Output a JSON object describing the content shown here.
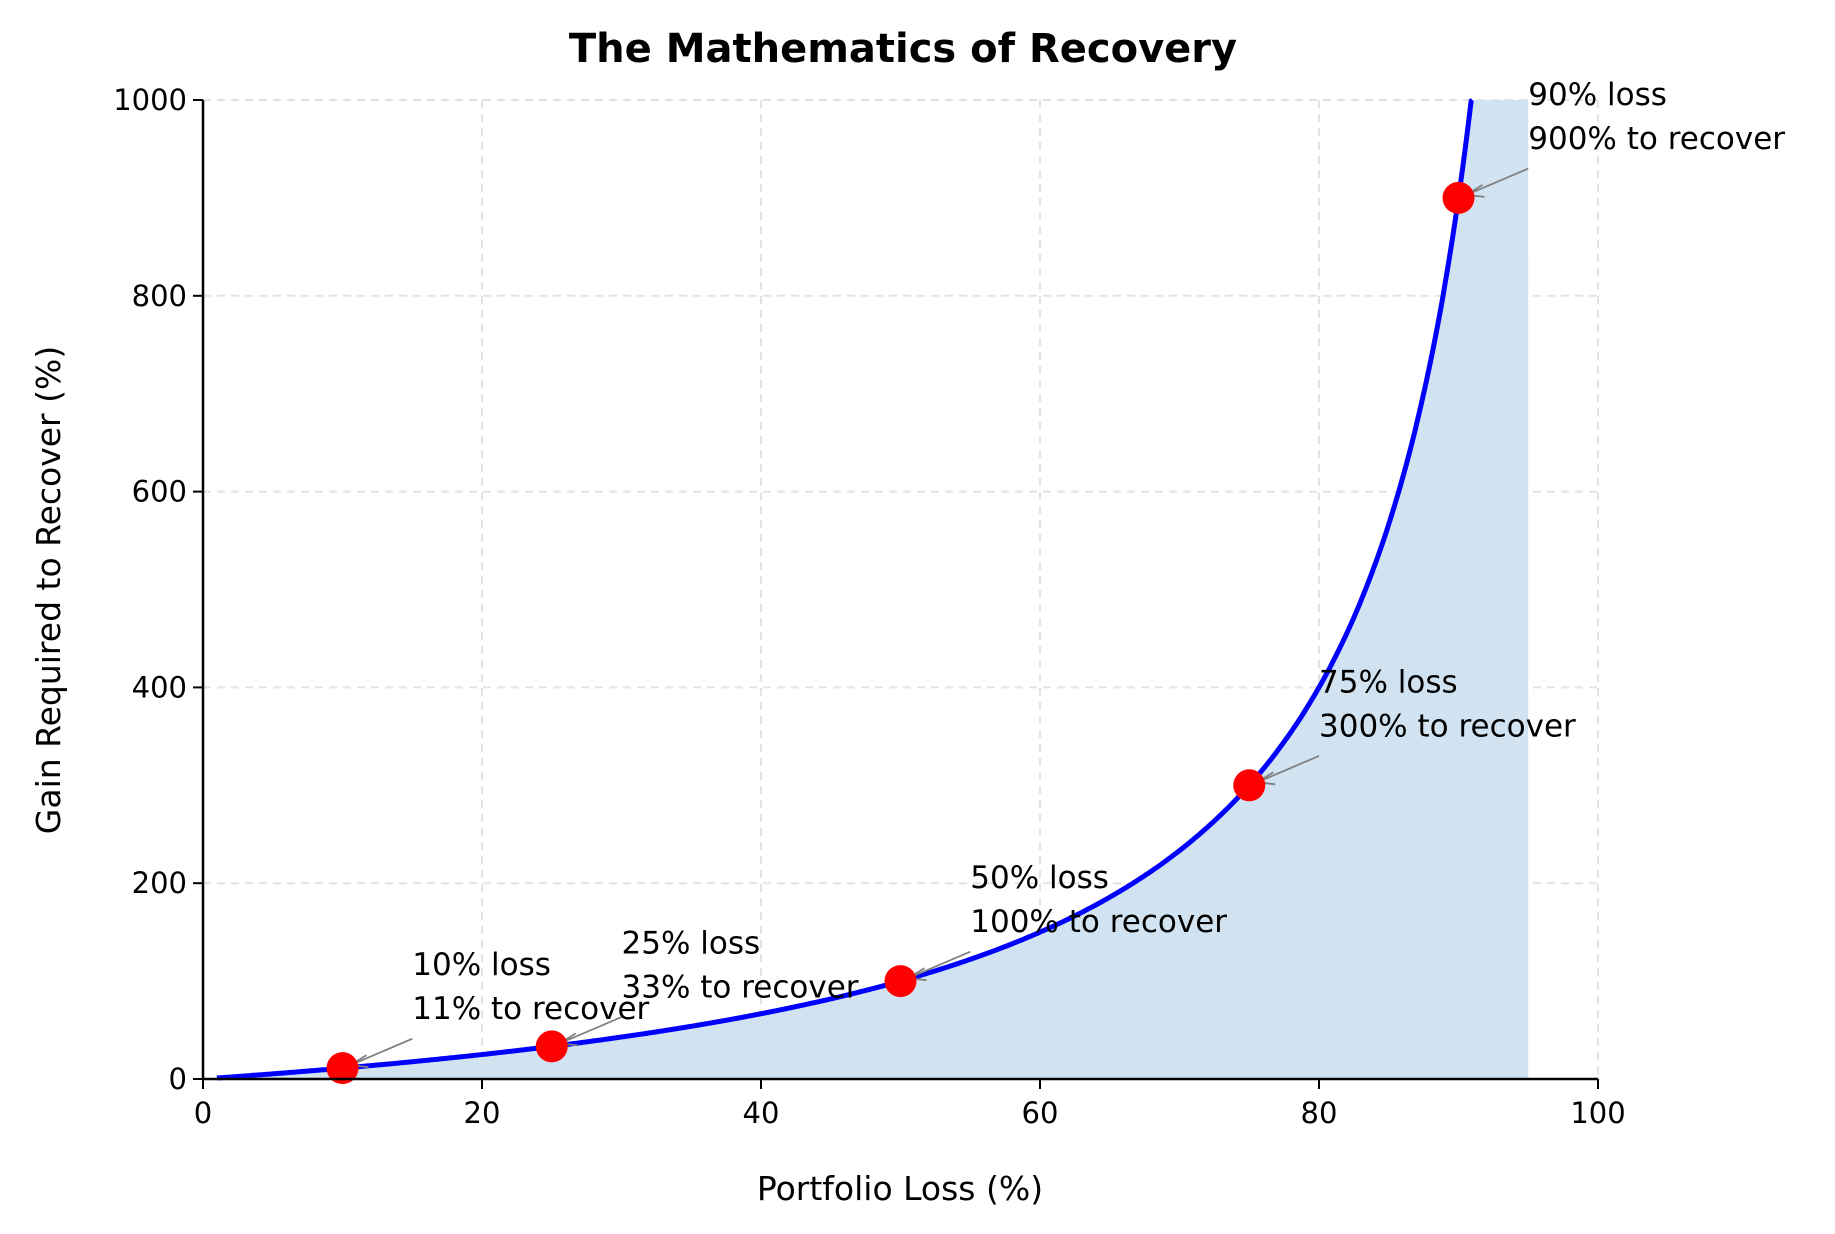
{
  "chart_data": {
    "type": "line",
    "title": "The Mathematics of Recovery",
    "xlabel": "Portfolio Loss (%)",
    "ylabel": "Gain Required to Recover (%)",
    "xlim": [
      0,
      100
    ],
    "ylim": [
      0,
      1000
    ],
    "xticks": [
      "0",
      "20",
      "40",
      "60",
      "80",
      "100"
    ],
    "yticks": [
      "0",
      "200",
      "400",
      "600",
      "800",
      "1000"
    ],
    "grid": true,
    "series": [
      {
        "formula": "gain = loss / (100 - loss) * 100",
        "x_range": [
          1,
          95
        ],
        "color": "#0000ff",
        "fill_color": "#d1e3f0"
      }
    ],
    "points": [
      {
        "x": 10,
        "y": 11.1,
        "label1": "10% loss",
        "label2": "11% to recover"
      },
      {
        "x": 25,
        "y": 33.3,
        "label1": "25% loss",
        "label2": "33% to recover"
      },
      {
        "x": 50,
        "y": 100,
        "label1": "50% loss",
        "label2": "100% to recover"
      },
      {
        "x": 75,
        "y": 300,
        "label1": "75% loss",
        "label2": "300% to recover"
      },
      {
        "x": 90,
        "y": 900,
        "label1": "90% loss",
        "label2": "900% to recover"
      }
    ],
    "point_color": "#ff0000"
  }
}
